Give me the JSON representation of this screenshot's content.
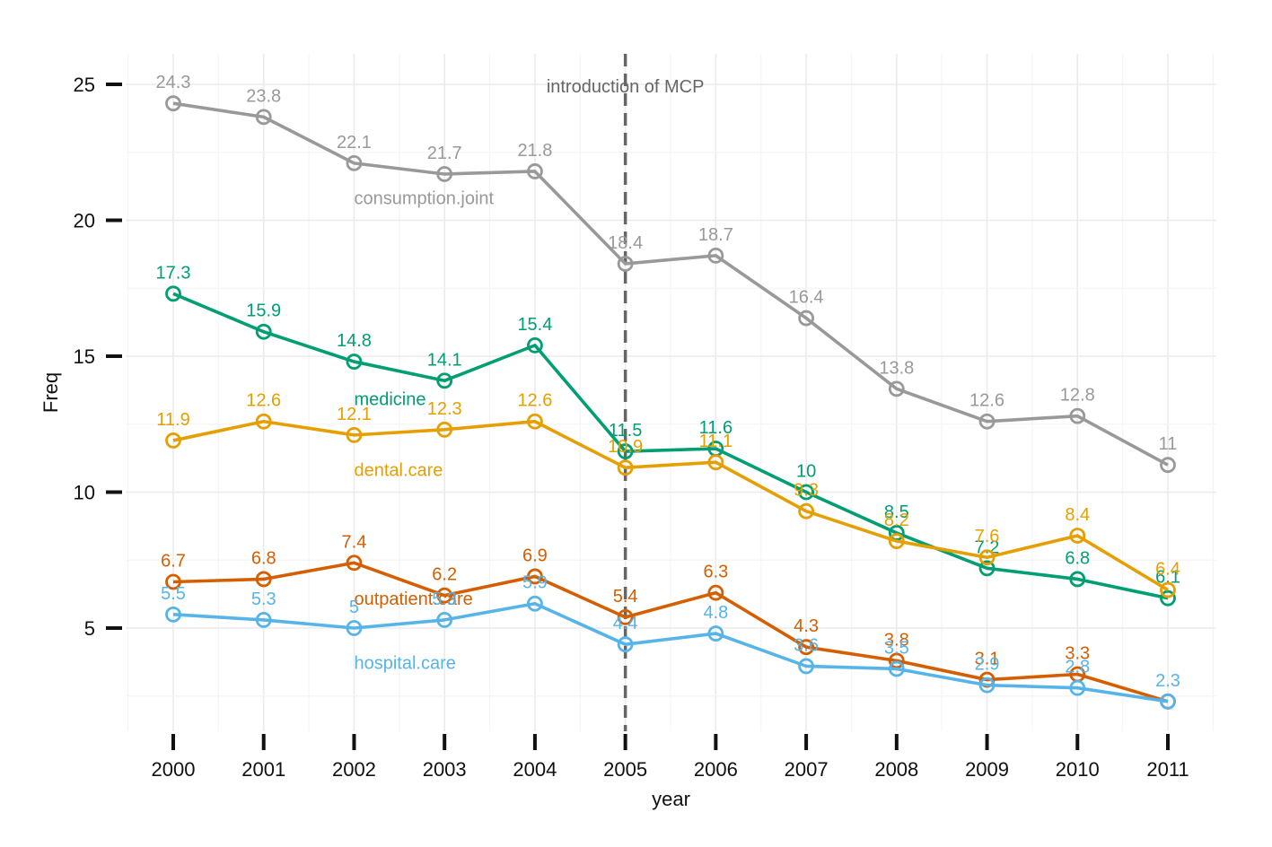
{
  "chart_data": {
    "type": "line",
    "xlabel": "year",
    "ylabel": "Freq",
    "x": [
      2000,
      2001,
      2002,
      2003,
      2004,
      2005,
      2006,
      2007,
      2008,
      2009,
      2010,
      2011
    ],
    "x_tick_labels": [
      "2000",
      "2001",
      "2002",
      "2003",
      "2004",
      "2005",
      "2006",
      "2007",
      "2008",
      "2009",
      "2010",
      "2011"
    ],
    "y_ticks": [
      5,
      10,
      15,
      20,
      25
    ],
    "y_tick_labels": [
      "5",
      "10",
      "15",
      "20",
      "25"
    ],
    "xlim": [
      1999.5,
      2011.5
    ],
    "ylim": [
      1.2,
      26.3
    ],
    "grid": true,
    "legend": "none",
    "annotation": {
      "text": "introduction of MCP",
      "x": 2005
    },
    "series": [
      {
        "name": "consumption.joint",
        "color": "#999999",
        "values": [
          24.3,
          23.8,
          22.1,
          21.7,
          21.8,
          18.4,
          18.7,
          16.4,
          13.8,
          12.6,
          12.8,
          11
        ],
        "labels": [
          "24.3",
          "23.8",
          "22.1",
          "21.7",
          "21.8",
          "18.4",
          "18.7",
          "16.4",
          "13.8",
          "12.6",
          "12.8",
          "11"
        ],
        "name_at": [
          2002,
          20.6
        ]
      },
      {
        "name": "medicine",
        "color": "#009E73",
        "values": [
          17.3,
          15.9,
          14.8,
          14.1,
          15.4,
          11.5,
          11.6,
          10,
          8.5,
          7.2,
          6.8,
          6.1
        ],
        "labels": [
          "17.3",
          "15.9",
          "14.8",
          "14.1",
          "15.4",
          "11.5",
          "11.6",
          "10",
          "8.5",
          "7.2",
          "6.8",
          "6.1"
        ],
        "name_at": [
          2002,
          13.2
        ]
      },
      {
        "name": "dental.care",
        "color": "#E69F00",
        "values": [
          11.9,
          12.6,
          12.1,
          12.3,
          12.6,
          10.9,
          11.1,
          9.3,
          8.2,
          7.6,
          8.4,
          6.4
        ],
        "labels": [
          "11.9",
          "12.6",
          "12.1",
          "12.3",
          "12.6",
          "10.9",
          "11.1",
          "9.3",
          "8.2",
          "7.6",
          "8.4",
          "6.4"
        ],
        "name_at": [
          2002,
          10.6
        ]
      },
      {
        "name": "outpatient.care",
        "color": "#D55E00",
        "values": [
          6.7,
          6.8,
          7.4,
          6.2,
          6.9,
          5.4,
          6.3,
          4.3,
          3.8,
          3.1,
          3.3,
          2.3
        ],
        "labels": [
          "6.7",
          "6.8",
          "7.4",
          "6.2",
          "6.9",
          "5.4",
          "6.3",
          "4.3",
          "3.8",
          "3.1",
          "3.3",
          ""
        ],
        "name_at": [
          2002,
          5.85
        ]
      },
      {
        "name": "hospital.care",
        "color": "#56B4E9",
        "values": [
          5.5,
          5.3,
          5,
          5.3,
          5.9,
          4.4,
          4.8,
          3.6,
          3.5,
          2.9,
          2.8,
          2.3
        ],
        "labels": [
          "5.5",
          "5.3",
          "5",
          "5.3",
          "5.9",
          "4.4",
          "4.8",
          "3.6",
          "3.5",
          "2.9",
          "2.8",
          "2.3"
        ],
        "name_at": [
          2002,
          3.5
        ]
      }
    ]
  }
}
